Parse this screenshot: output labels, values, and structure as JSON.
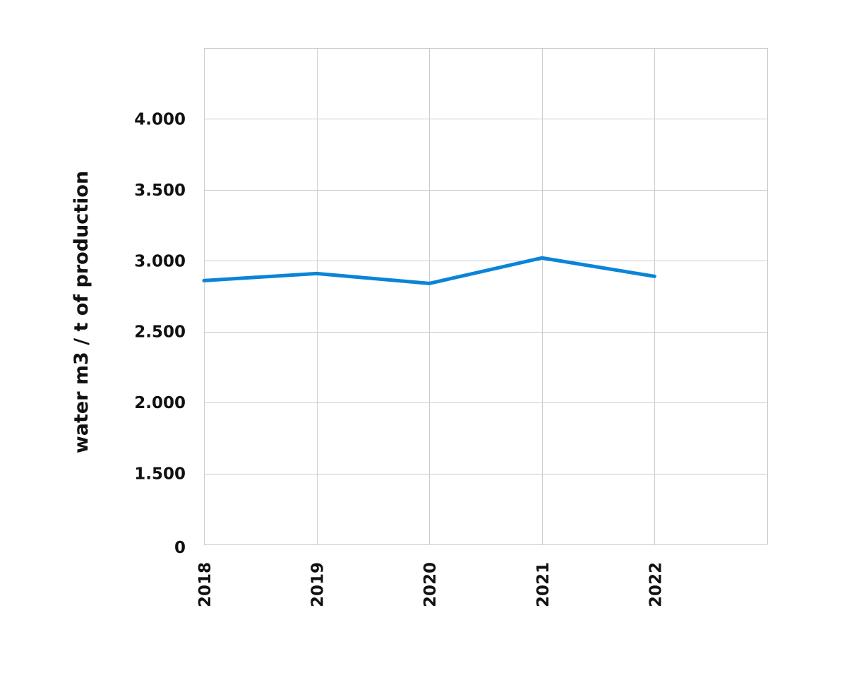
{
  "chart_data": {
    "type": "line",
    "categories": [
      "2018",
      "2019",
      "2020",
      "2021",
      "2022"
    ],
    "series": [
      {
        "values": [
          2.86,
          2.91,
          2.84,
          3.02,
          2.89
        ]
      }
    ],
    "xlabel": "",
    "ylabel": "water m3 / t of production",
    "y_ticks": [
      {
        "value": 1.5,
        "label": "1.500"
      },
      {
        "value": 2.0,
        "label": "2.000"
      },
      {
        "value": 2.5,
        "label": "2.500"
      },
      {
        "value": 3.0,
        "label": "3.000"
      },
      {
        "value": 3.5,
        "label": "3.500"
      },
      {
        "value": 4.0,
        "label": "4.000"
      }
    ],
    "y_zero_label": "0",
    "ylim_display": [
      1.0,
      4.5
    ],
    "axis_break": "values below 1.000 compressed; bottom edge labelled 0",
    "grid": true,
    "legend": "none",
    "colors": {
      "line": "#0b84d8",
      "grid": "#cccccc",
      "text": "#111111"
    }
  }
}
